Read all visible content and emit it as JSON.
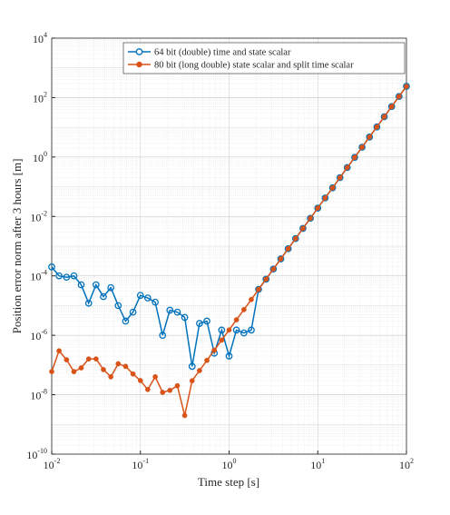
{
  "chart_data": {
    "type": "line",
    "xlabel": "Time step [s]",
    "ylabel": "Position error norm after 3 hours [m]",
    "xscale": "log",
    "yscale": "log",
    "grid": true,
    "minor_grid": true,
    "legend": "upper right",
    "x": [
      0.01,
      0.0121,
      0.0147,
      0.0178,
      0.0215,
      0.0261,
      0.0316,
      0.0383,
      0.0464,
      0.0562,
      0.0681,
      0.0825,
      0.1,
      0.121,
      0.147,
      0.178,
      0.215,
      0.261,
      0.316,
      0.383,
      0.464,
      0.562,
      0.681,
      0.825,
      1,
      1.21,
      1.47,
      1.78,
      2.15,
      2.61,
      3.16,
      3.83,
      4.64,
      5.62,
      6.81,
      8.25,
      10,
      12.1,
      14.7,
      17.8,
      21.5,
      26.1,
      31.6,
      38.3,
      46.4,
      56.2,
      68.1,
      82.5,
      100
    ],
    "series": [
      {
        "name": "64 bit (double) time and state scalar",
        "color": "#0072bd",
        "marker": "o",
        "values": [
          0.0002,
          0.0001,
          9e-05,
          0.0001,
          5e-05,
          1.2e-05,
          5e-05,
          2e-05,
          4e-05,
          1e-05,
          3e-06,
          6e-06,
          2.2e-05,
          1.8e-05,
          1.3e-05,
          1e-06,
          7e-06,
          6e-06,
          4e-06,
          9e-08,
          2.5e-06,
          3e-06,
          2.5e-07,
          1.5e-06,
          2e-07,
          1.5e-06,
          1.2e-06,
          1.5e-06,
          3.52e-05,
          7.73e-05,
          0.00017,
          0.000373,
          0.000819,
          0.0018,
          0.00395,
          0.00867,
          0.0191,
          0.0419,
          0.0919,
          0.202,
          0.443,
          0.973,
          2.14,
          4.7,
          10.3,
          22.6,
          49.8,
          109,
          240
        ]
      },
      {
        "name": "80 bit (long double) state scalar and split time scalar",
        "color": "#d95319",
        "marker": ".",
        "values": [
          6e-08,
          3e-07,
          1.5e-07,
          6e-08,
          8e-08,
          1.6e-07,
          1.6e-07,
          7e-08,
          4e-08,
          1.1e-07,
          9e-08,
          5e-08,
          3e-08,
          1.5e-08,
          4e-08,
          1.2e-08,
          1.4e-08,
          2e-08,
          2e-09,
          2.95e-08,
          6.5e-08,
          1.43e-07,
          3.14e-07,
          6.9e-07,
          1.51e-06,
          3.32e-06,
          7.3e-06,
          1.6e-05,
          3.52e-05,
          7.73e-05,
          0.00017,
          0.000373,
          0.000819,
          0.0018,
          0.00395,
          0.00867,
          0.0191,
          0.0419,
          0.0919,
          0.202,
          0.443,
          0.973,
          2.14,
          4.7,
          10.3,
          22.6,
          49.8,
          109,
          240
        ]
      }
    ],
    "xlim": [
      0.01,
      100
    ],
    "xticks": [
      {
        "value": 0.01,
        "label": "10",
        "exp": "-2"
      },
      {
        "value": 0.1,
        "label": "10",
        "exp": "-1"
      },
      {
        "value": 1,
        "label": "10",
        "exp": "0"
      },
      {
        "value": 10,
        "label": "10",
        "exp": "1"
      },
      {
        "value": 100,
        "label": "10",
        "exp": "2"
      }
    ],
    "ylim": [
      1e-10,
      10000
    ],
    "yticks": [
      {
        "value": 1e-10,
        "label": "10",
        "exp": "-10"
      },
      {
        "value": 1e-08,
        "label": "10",
        "exp": "-8"
      },
      {
        "value": 1e-06,
        "label": "10",
        "exp": "-6"
      },
      {
        "value": 0.0001,
        "label": "10",
        "exp": "-4"
      },
      {
        "value": 0.01,
        "label": "10",
        "exp": "-2"
      },
      {
        "value": 1,
        "label": "10",
        "exp": "0"
      },
      {
        "value": 100,
        "label": "10",
        "exp": "2"
      },
      {
        "value": 10000,
        "label": "10",
        "exp": "4"
      }
    ]
  }
}
